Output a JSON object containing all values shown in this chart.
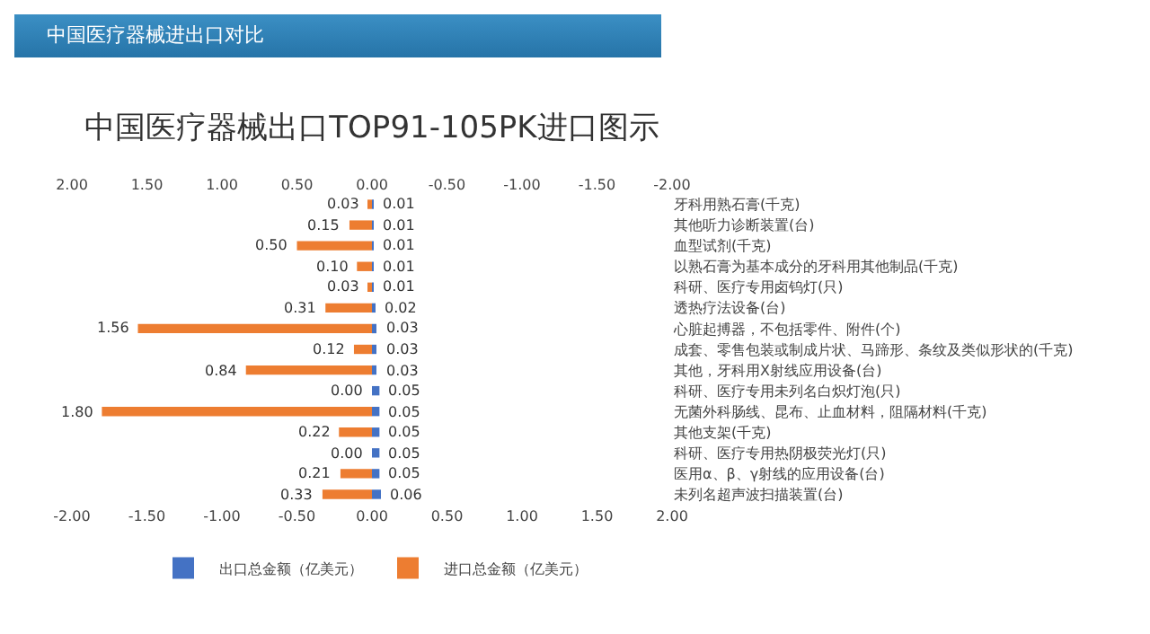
{
  "chart_data": {
    "type": "bar",
    "orientation": "horizontal",
    "title": "中国医疗器械出口TOP91-105PK进口图示",
    "annotations": [
      "中国医疗器械进出口对比"
    ],
    "categories": [
      "牙科用熟石膏(千克)",
      "其他听力诊断装置(台)",
      "血型试剂(千克)",
      "以熟石膏为基本成分的牙科用其他制品(千克)",
      "科研、医疗专用卤钨灯(只)",
      "透热疗法设备(台)",
      "心脏起搏器，不包括零件、附件(个)",
      "成套、零售包装或制成片状、马蹄形、条纹及类似形状的(千克)",
      "其他，牙科用X射线应用设备(台)",
      "科研、医疗专用未列名白炽灯泡(只)",
      "无菌外科肠线、昆布、止血材料，阻隔材料(千克)",
      "其他支架(千克)",
      "科研、医疗专用热阴极荧光灯(只)",
      "医用α、β、γ射线的应用设备(台)",
      "未列名超声波扫描装置(台)"
    ],
    "series": [
      {
        "name": "出口总金额（亿美元）",
        "color": "#4472c4",
        "values": [
          0.01,
          0.01,
          0.01,
          0.01,
          0.01,
          0.02,
          0.03,
          0.03,
          0.03,
          0.05,
          0.05,
          0.05,
          0.05,
          0.05,
          0.06
        ],
        "value_labels": [
          "0.01",
          "0.01",
          "0.01",
          "0.01",
          "0.01",
          "0.02",
          "0.03",
          "0.03",
          "0.03",
          "0.05",
          "0.05",
          "0.05",
          "0.05",
          "0.05",
          "0.06"
        ]
      },
      {
        "name": "进口总金额（亿美元）",
        "color": "#ed7d31",
        "axis": "x2",
        "values": [
          0.03,
          0.15,
          0.5,
          0.1,
          0.03,
          0.31,
          1.56,
          0.12,
          0.84,
          0,
          1.8,
          0.22,
          0,
          0.21,
          0.33
        ],
        "value_labels": [
          "0.03",
          "0.15",
          "0.50",
          "0.10",
          "0.03",
          "0.31",
          "1.56",
          "0.12",
          "0.84",
          "0.00",
          "1.80",
          "0.22",
          "0.00",
          "0.21",
          "0.33"
        ]
      }
    ],
    "xlim": [
      -2,
      2
    ],
    "xticks": [
      {
        "value": -2,
        "label": "-2.00"
      },
      {
        "value": -1.5,
        "label": "-1.50"
      },
      {
        "value": -1,
        "label": "-1.00"
      },
      {
        "value": -0.5,
        "label": "-0.50"
      },
      {
        "value": 0,
        "label": "0.00"
      },
      {
        "value": 0.5,
        "label": "0.50"
      },
      {
        "value": 1,
        "label": "1.00"
      },
      {
        "value": 1.5,
        "label": "1.50"
      },
      {
        "value": 2,
        "label": "2.00"
      }
    ],
    "x2lim": [
      2,
      -2
    ],
    "x2ticks": [
      {
        "value": 2,
        "label": "2.00"
      },
      {
        "value": 1.5,
        "label": "1.50"
      },
      {
        "value": 1,
        "label": "1.00"
      },
      {
        "value": 0.5,
        "label": "0.50"
      },
      {
        "value": 0,
        "label": "0.00"
      },
      {
        "value": -0.5,
        "label": "-0.50"
      },
      {
        "value": -1,
        "label": "-1.00"
      },
      {
        "value": -1.5,
        "label": "-1.50"
      },
      {
        "value": -2,
        "label": "-2.00"
      }
    ],
    "grid": false,
    "legend": "bottom"
  }
}
